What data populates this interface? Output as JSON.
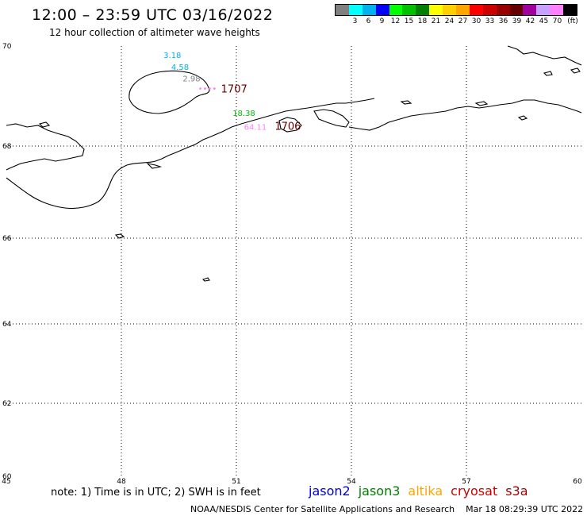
{
  "header": {
    "title": "12:00 – 23:59 UTC 03/16/2022",
    "subtitle": "12 hour collection of altimeter wave heights"
  },
  "legend": {
    "unit": "(ft)",
    "bins": [
      {
        "color": "#808080",
        "label": ""
      },
      {
        "color": "#00ffff",
        "label": "3"
      },
      {
        "color": "#00b0f0",
        "label": "6"
      },
      {
        "color": "#0000ff",
        "label": "9"
      },
      {
        "color": "#00ff00",
        "label": "12"
      },
      {
        "color": "#00c000",
        "label": "15"
      },
      {
        "color": "#008000",
        "label": "18"
      },
      {
        "color": "#ffff00",
        "label": "21"
      },
      {
        "color": "#ffd000",
        "label": "24"
      },
      {
        "color": "#ffa500",
        "label": "27"
      },
      {
        "color": "#ff0000",
        "label": "30"
      },
      {
        "color": "#cc0000",
        "label": "33"
      },
      {
        "color": "#990000",
        "label": "36"
      },
      {
        "color": "#660000",
        "label": "39"
      },
      {
        "color": "#a000a0",
        "label": "42"
      },
      {
        "color": "#c8a0ff",
        "label": "45"
      },
      {
        "color": "#ff80ff",
        "label": "70"
      },
      {
        "color": "#000000",
        "label": ""
      }
    ]
  },
  "map": {
    "lon_min": 45,
    "lon_max": 60,
    "lat_min": 60,
    "lat_max": 70,
    "lon_ticks": [
      "45",
      "48",
      "51",
      "54",
      "57",
      "60"
    ],
    "lat_ticks": [
      "60",
      "62",
      "64",
      "66",
      "68",
      "70"
    ],
    "passes": [
      {
        "id": "1707",
        "id_color": "#660000",
        "values": [
          {
            "text": "3.18",
            "color": "#00b0f0",
            "lon": 49.1,
            "lat": 69.72
          },
          {
            "text": "4.58",
            "color": "#00b0f0",
            "lon": 49.3,
            "lat": 69.45
          },
          {
            "text": "2.98",
            "color": "#808080",
            "lon": 49.6,
            "lat": 69.18
          },
          {
            "text": "",
            "color": "#ff80ff",
            "lon": 50.0,
            "lat": 68.95
          }
        ],
        "id_pos": {
          "lon": 50.6,
          "lat": 68.92
        }
      },
      {
        "id": "1706",
        "id_color": "#660000",
        "values": [
          {
            "text": "18.38",
            "color": "#00c000",
            "lon": 50.9,
            "lat": 68.38
          },
          {
            "text": "64.11",
            "color": "#ff80ff",
            "lon": 51.2,
            "lat": 68.05
          }
        ],
        "id_pos": {
          "lon": 52.0,
          "lat": 68.05
        }
      }
    ]
  },
  "footer": {
    "note": "note: 1) Time is in UTC; 2) SWH is in feet",
    "satellites": [
      {
        "name": "jason2",
        "color": "#0000cc"
      },
      {
        "name": "jason3",
        "color": "#008000"
      },
      {
        "name": "altika",
        "color": "#ffa500"
      },
      {
        "name": "cryosat",
        "color": "#cc0000"
      },
      {
        "name": "s3a",
        "color": "#990000"
      }
    ],
    "credit": "NOAA/NESDIS Center for Satellite Applications and Research    Mar 18 08:29:39 UTC 2022"
  }
}
